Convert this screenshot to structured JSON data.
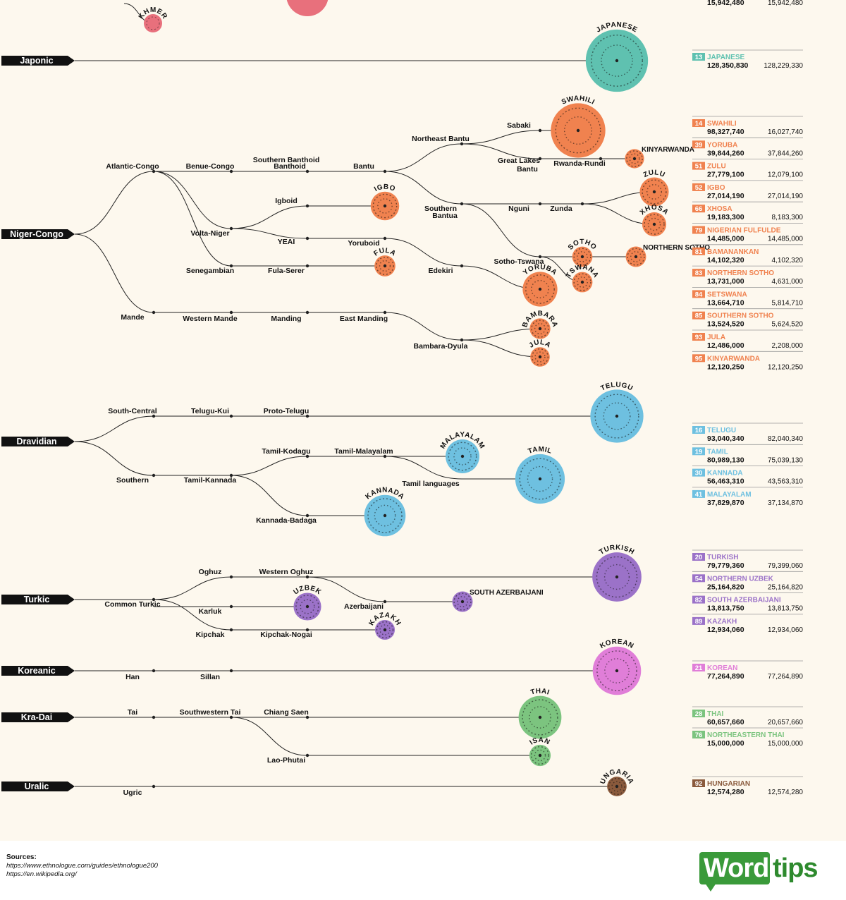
{
  "colors": {
    "bg": "#fdf8ee",
    "line": "#222222",
    "text": "#111111"
  },
  "top_partial": {
    "khmer_label": "KHMER",
    "first": "15,942,480",
    "total": "15,942,480"
  },
  "families": [
    {
      "id": "jap",
      "name": "Japonic",
      "color": "#5fc1b0",
      "branches": [],
      "languages": [
        {
          "label": "JAPANESE",
          "rank": "13",
          "name": "JAPANESE",
          "first": "128,350,830",
          "total": "128,229,330",
          "value": 128.35
        }
      ]
    },
    {
      "id": "nc",
      "name": "Niger-Congo",
      "color": "#f0824f",
      "branches": [
        "Atlantic-Congo",
        "Benue-Congo",
        "Southern Banthoid",
        "Bantu",
        "Northeast Bantu",
        "Sabaki",
        "Great Lakes Bantu",
        "Rwanda-Rundi",
        "Southern Bantua",
        "Nguni",
        "Zunda",
        "Sotho-Tswana",
        "Volta-Niger",
        "Igboid",
        "YEAI",
        "Yoruboid",
        "Edekiri",
        "Senegambian",
        "Fula-Serer",
        "Mande",
        "Western Mande",
        "Manding",
        "East Manding",
        "Bambara-Dyula"
      ],
      "languages": [
        {
          "label": "SWAHILI",
          "rank": "14",
          "name": "SWAHILI",
          "first": "98,327,740",
          "total": "16,027,740",
          "value": 98.33
        },
        {
          "label": "YORUBA",
          "rank": "39",
          "name": "YORUBA",
          "first": "39,844,260",
          "total": "37,844,260",
          "value": 39.84
        },
        {
          "label": "ZULU",
          "rank": "51",
          "name": "ZULU",
          "first": "27,779,100",
          "total": "12,079,100",
          "value": 27.78
        },
        {
          "label": "IGBO",
          "rank": "52",
          "name": "IGBO",
          "first": "27,014,190",
          "total": "27,014,190",
          "value": 27.01
        },
        {
          "label": "XHOSA",
          "rank": "66",
          "name": "XHOSA",
          "first": "19,183,300",
          "total": "8,183,300",
          "value": 19.18
        },
        {
          "label": "FULA",
          "rank": "79",
          "name": "NIGERIAN FULFULDE",
          "first": "14,485,000",
          "total": "14,485,000",
          "value": 14.49
        },
        {
          "label": "BAMBARA",
          "rank": "81",
          "name": "BAMANANKAN",
          "first": "14,102,320",
          "total": "4,102,320",
          "value": 14.1
        },
        {
          "label": "NORTHERN SOTHO",
          "rank": "83",
          "name": "NORTHERN SOTHO",
          "first": "13,731,000",
          "total": "4,631,000",
          "value": 13.73
        },
        {
          "label": "TSWANA",
          "rank": "84",
          "name": "SETSWANA",
          "first": "13,664,710",
          "total": "5,814,710",
          "value": 13.66
        },
        {
          "label": "SOTHO",
          "rank": "85",
          "name": "SOUTHERN SOTHO",
          "first": "13,524,520",
          "total": "5,624,520",
          "value": 13.52
        },
        {
          "label": "JULA",
          "rank": "93",
          "name": "JULA",
          "first": "12,486,000",
          "total": "2,208,000",
          "value": 12.49
        },
        {
          "label": "KINYARWANDA",
          "rank": "95",
          "name": "KINYARWANDA",
          "first": "12,120,250",
          "total": "12,120,250",
          "value": 12.12
        }
      ]
    },
    {
      "id": "dra",
      "name": "Dravidian",
      "color": "#6ec0e0",
      "branches": [
        "South-Central",
        "Telugu-Kui",
        "Proto-Telugu",
        "Southern",
        "Tamil-Kannada",
        "Tamil-Kodagu",
        "Tamil-Malayalam",
        "Tamil languages",
        "Kannada-Badaga"
      ],
      "languages": [
        {
          "label": "TELUGU",
          "rank": "16",
          "name": "TELUGU",
          "first": "93,040,340",
          "total": "82,040,340",
          "value": 93.04
        },
        {
          "label": "TAMIL",
          "rank": "19",
          "name": "TAMIL",
          "first": "80,989,130",
          "total": "75,039,130",
          "value": 80.99
        },
        {
          "label": "KANNADA",
          "rank": "30",
          "name": "KANNADA",
          "first": "56,463,310",
          "total": "43,563,310",
          "value": 56.46
        },
        {
          "label": "MALAYALAM",
          "rank": "41",
          "name": "MALAYALAM",
          "first": "37,829,870",
          "total": "37,134,870",
          "value": 37.83
        }
      ]
    },
    {
      "id": "tur",
      "name": "Turkic",
      "color": "#9b72c8",
      "branches": [
        "Common Turkic",
        "Oghuz",
        "Western Oghuz",
        "Azerbaijani",
        "Karluk",
        "Kipchak",
        "Kipchak-Nogai"
      ],
      "languages": [
        {
          "label": "TURKISH",
          "rank": "20",
          "name": "TURKISH",
          "first": "79,779,360",
          "total": "79,399,060",
          "value": 79.78
        },
        {
          "label": "UZBEK",
          "rank": "54",
          "name": "NORTHERN UZBEK",
          "first": "25,164,820",
          "total": "25,164,820",
          "value": 25.16
        },
        {
          "label": "SOUTH AZERBAIJANI",
          "rank": "82",
          "name": "SOUTH AZERBAIJANI",
          "first": "13,813,750",
          "total": "13,813,750",
          "value": 13.81
        },
        {
          "label": "KAZAKH",
          "rank": "89",
          "name": "KAZAKH",
          "first": "12,934,060",
          "total": "12,934,060",
          "value": 12.93
        }
      ]
    },
    {
      "id": "kor",
      "name": "Koreanic",
      "color": "#e07ed8",
      "branches": [
        "Han",
        "Sillan"
      ],
      "languages": [
        {
          "label": "KOREAN",
          "rank": "21",
          "name": "KOREAN",
          "first": "77,264,890",
          "total": "77,264,890",
          "value": 77.26
        }
      ]
    },
    {
      "id": "kd",
      "name": "Kra-Dai",
      "color": "#7cc47f",
      "branches": [
        "Tai",
        "Southwestern Tai",
        "Chiang Saen",
        "Lao-Phutai"
      ],
      "languages": [
        {
          "label": "THAI",
          "rank": "28",
          "name": "THAI",
          "first": "60,657,660",
          "total": "20,657,660",
          "value": 60.66
        },
        {
          "label": "ISAN",
          "rank": "76",
          "name": "NORTHEASTERN THAI",
          "first": "15,000,000",
          "total": "15,000,000",
          "value": 15.0
        }
      ]
    },
    {
      "id": "ura",
      "name": "Uralic",
      "color": "#8a5a3c",
      "branches": [
        "Ugric"
      ],
      "languages": [
        {
          "label": "HUNGARIAN",
          "rank": "92",
          "name": "HUNGARIAN",
          "first": "12,574,280",
          "total": "12,574,280",
          "value": 12.57
        }
      ]
    }
  ],
  "footer": {
    "sources_title": "Sources:",
    "sources": [
      "https://www.ethnologue.com/guides/ethnologue200",
      "https://en.wikipedia.org/"
    ],
    "logo_word": "Word",
    "logo_tips": "tips"
  }
}
